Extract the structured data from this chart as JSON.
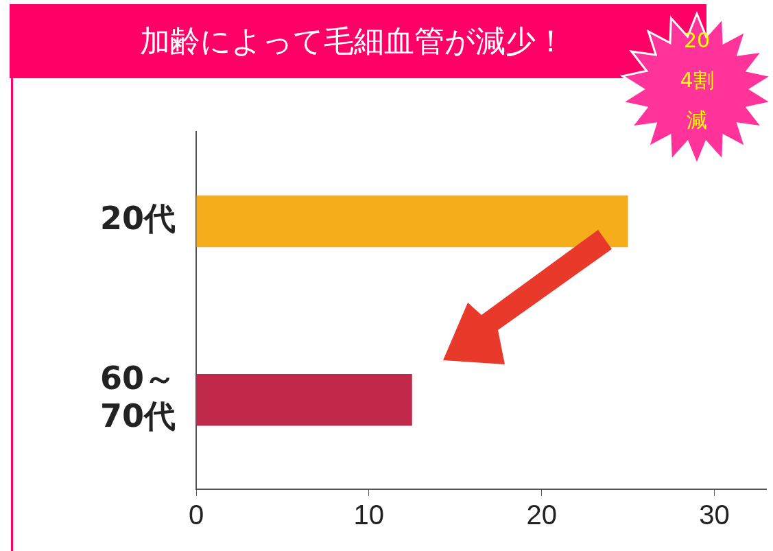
{
  "chart_data": {
    "type": "bar",
    "orientation": "horizontal",
    "title": "加齢によって毛細血管が減少！",
    "categories": [
      "20代",
      "60～70代"
    ],
    "values": [
      25,
      12.5
    ],
    "colors": [
      "#f5ad1c",
      "#c0294a"
    ],
    "xlim": [
      0,
      33
    ],
    "xticks": [
      0,
      10,
      20,
      30
    ],
    "grid": false,
    "legend": false,
    "annotations": [
      "20",
      "4割",
      "減"
    ]
  }
}
